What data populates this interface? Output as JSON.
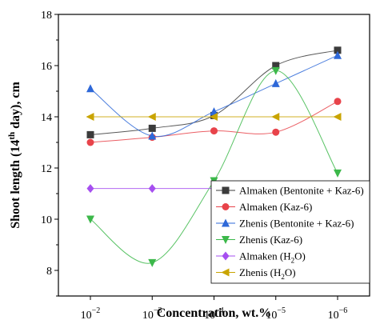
{
  "chart_data": {
    "type": "line",
    "xlabel": "Concentration, wt.%",
    "ylabel_main": "Shoot length (14",
    "ylabel_sup": "th",
    "ylabel_rest": " day), cm",
    "ylim": [
      7,
      18
    ],
    "yticks": [
      "8",
      "10",
      "12",
      "14",
      "16",
      "18"
    ],
    "categories": [
      {
        "base": "10",
        "exp": "−2"
      },
      {
        "base": "10",
        "exp": "−3"
      },
      {
        "base": "10",
        "exp": "−4"
      },
      {
        "base": "10",
        "exp": "−5"
      },
      {
        "base": "10",
        "exp": "−6"
      }
    ],
    "legend_position": "bottom-right",
    "series": [
      {
        "name": "Almaken (Bentonite + Kaz-6)",
        "sub": "",
        "name_after": "",
        "color": "#3b3b3b",
        "marker": "square",
        "values": [
          13.3,
          13.55,
          14.05,
          16.0,
          16.6
        ]
      },
      {
        "name": "Almaken (Kaz-6)",
        "sub": "",
        "name_after": "",
        "color": "#e8434a",
        "marker": "circle",
        "values": [
          13.0,
          13.2,
          13.45,
          13.4,
          14.6
        ]
      },
      {
        "name": "Zhenis (Bentonite + Kaz-6)",
        "sub": "",
        "name_after": "",
        "color": "#2e68d8",
        "marker": "triangle-up",
        "values": [
          15.1,
          13.25,
          14.2,
          15.3,
          16.4
        ]
      },
      {
        "name": "Zhenis (Kaz-6)",
        "sub": "",
        "name_after": "",
        "color": "#3cb84a",
        "marker": "triangle-down",
        "values": [
          10.0,
          8.3,
          11.5,
          15.8,
          11.8
        ]
      },
      {
        "name": "Almaken (H",
        "sub": "2",
        "name_after": "O)",
        "color": "#a64ff0",
        "marker": "diamond",
        "values": [
          11.2,
          11.2,
          11.2,
          11.2,
          11.2
        ]
      },
      {
        "name": "Zhenis (H",
        "sub": "2",
        "name_after": "O)",
        "color": "#c9a400",
        "marker": "triangle-left",
        "values": [
          14.0,
          14.0,
          14.0,
          14.0,
          14.0
        ]
      }
    ]
  }
}
